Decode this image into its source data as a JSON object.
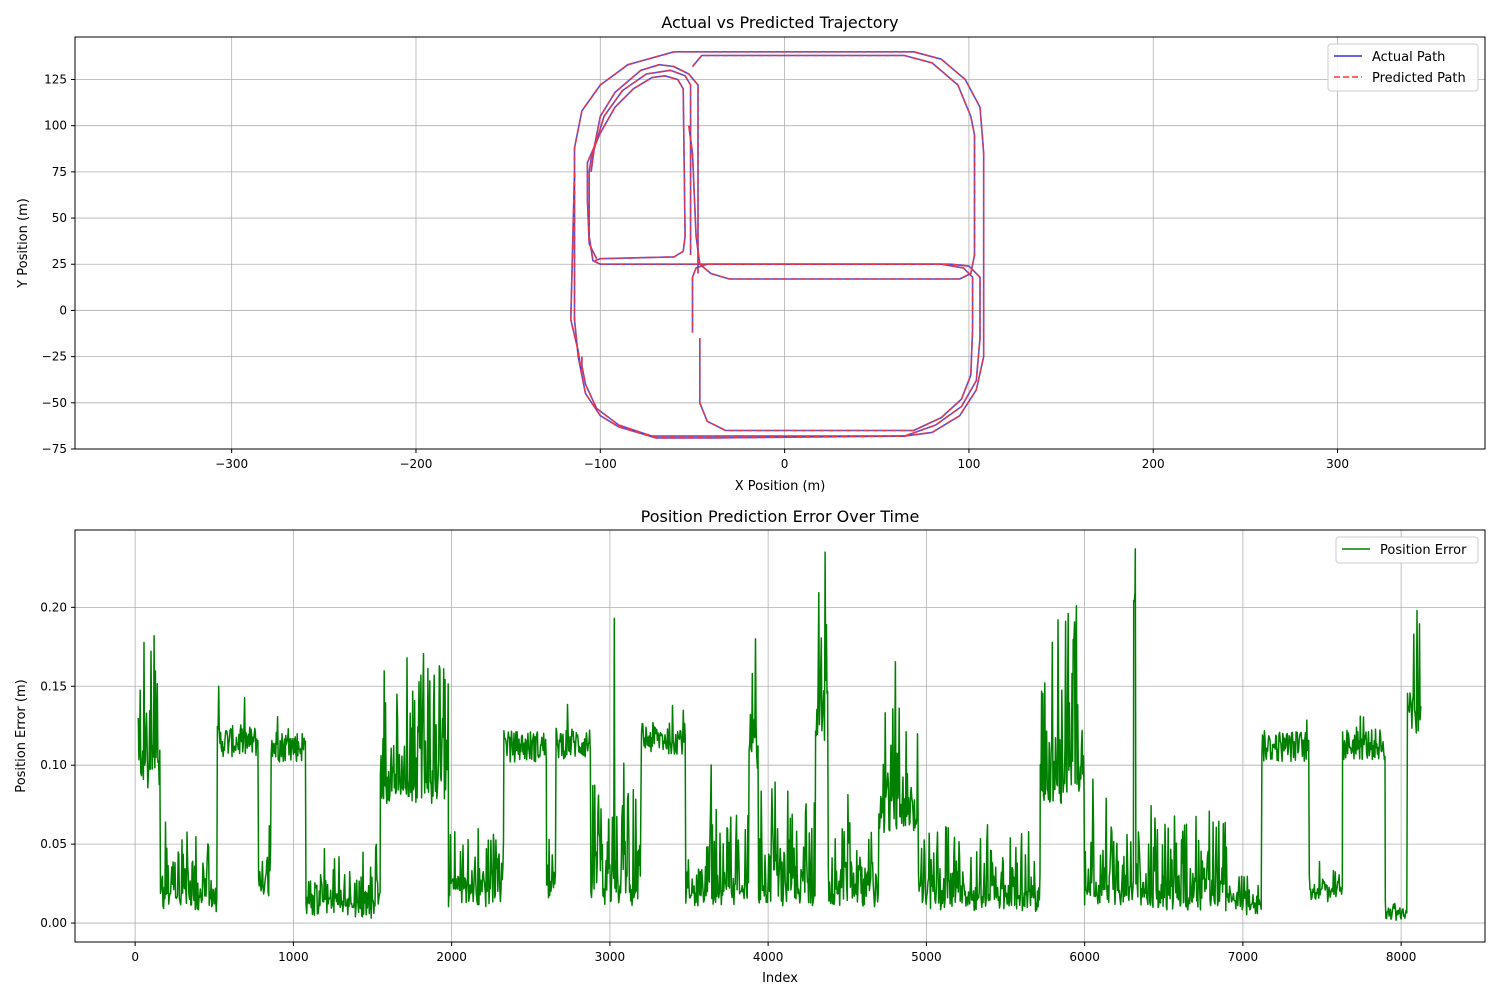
{
  "chart_data": [
    {
      "type": "line",
      "title": "Actual vs Predicted Trajectory",
      "xlabel": "X Position (m)",
      "ylabel": "Y Position (m)",
      "xlim": [
        -385,
        380
      ],
      "ylim": [
        -75,
        148
      ],
      "xticks": [
        -300,
        -200,
        -100,
        0,
        100,
        200,
        300
      ],
      "yticks": [
        -75,
        -50,
        -25,
        0,
        25,
        50,
        75,
        100,
        125
      ],
      "xtick_labels": [
        "−300",
        "−200",
        "−100",
        "0",
        "100",
        "200",
        "300"
      ],
      "ytick_labels": [
        "−75",
        "−50",
        "−25",
        "0",
        "25",
        "50",
        "75",
        "100",
        "125"
      ],
      "grid": true,
      "legend": "top-right",
      "series": [
        {
          "name": "Actual Path",
          "color": "#3333dd",
          "style": "solid"
        },
        {
          "name": "Predicted Path",
          "color": "#ff3333",
          "style": "dashed"
        }
      ],
      "paths": [
        [
          [
            -114,
            75
          ],
          [
            -114,
            -5
          ],
          [
            -112,
            -25
          ],
          [
            -108,
            -45
          ],
          [
            -100,
            -57
          ],
          [
            -90,
            -63
          ],
          [
            -70,
            -69
          ],
          [
            -40,
            -69
          ],
          [
            65,
            -68
          ],
          [
            80,
            -66
          ],
          [
            95,
            -57
          ],
          [
            104,
            -43
          ],
          [
            108,
            -25
          ],
          [
            108,
            25
          ],
          [
            108,
            85
          ],
          [
            106,
            110
          ],
          [
            98,
            125
          ],
          [
            85,
            136
          ],
          [
            70,
            140
          ],
          [
            -60,
            140
          ],
          [
            -85,
            133
          ],
          [
            -100,
            122
          ],
          [
            -110,
            108
          ],
          [
            -114,
            88
          ],
          [
            -114,
            75
          ]
        ],
        [
          [
            -110,
            -25
          ],
          [
            -110,
            -30
          ],
          [
            -108,
            -40
          ],
          [
            -102,
            -53
          ],
          [
            -90,
            -62
          ],
          [
            -72,
            -68
          ],
          [
            -58,
            -68
          ],
          [
            65,
            -68
          ],
          [
            82,
            -62
          ],
          [
            96,
            -52
          ],
          [
            104,
            -38
          ],
          [
            106,
            -15
          ],
          [
            106,
            18
          ],
          [
            100,
            24
          ],
          [
            90,
            25
          ],
          [
            -100,
            25
          ],
          [
            -104,
            27
          ],
          [
            -106,
            40
          ],
          [
            -106,
            75
          ],
          [
            -105,
            82
          ],
          [
            -98,
            105
          ],
          [
            -88,
            119
          ],
          [
            -75,
            128
          ],
          [
            -62,
            130
          ],
          [
            -54,
            127
          ],
          [
            -51,
            122
          ],
          [
            -51,
            30
          ]
        ],
        [
          [
            -46,
            -15
          ],
          [
            -46,
            -50
          ],
          [
            -42,
            -60
          ],
          [
            -32,
            -65
          ],
          [
            70,
            -65
          ],
          [
            85,
            -58
          ],
          [
            96,
            -48
          ],
          [
            101,
            -35
          ],
          [
            102,
            -10
          ],
          [
            102,
            18
          ],
          [
            97,
            23
          ],
          [
            85,
            25
          ],
          [
            -42,
            25
          ],
          [
            -48,
            23
          ],
          [
            -50,
            18
          ],
          [
            -50,
            -12
          ]
        ],
        [
          [
            -52,
            100
          ],
          [
            -50,
            85
          ],
          [
            -48,
            40
          ],
          [
            -46,
            25
          ],
          [
            -40,
            20
          ],
          [
            -30,
            17
          ],
          [
            -20,
            17
          ],
          [
            95,
            17
          ],
          [
            101,
            20
          ],
          [
            103,
            30
          ],
          [
            103,
            70
          ],
          [
            103,
            95
          ],
          [
            101,
            105
          ],
          [
            94,
            122
          ],
          [
            80,
            134
          ],
          [
            65,
            138
          ],
          [
            -45,
            138
          ],
          [
            -50,
            132
          ]
        ],
        [
          [
            -102,
            28
          ],
          [
            -106,
            36
          ],
          [
            -107,
            60
          ],
          [
            -107,
            80
          ],
          [
            -100,
            96
          ],
          [
            -92,
            110
          ],
          [
            -82,
            120
          ],
          [
            -72,
            126
          ],
          [
            -65,
            127
          ],
          [
            -58,
            125
          ],
          [
            -55,
            120
          ],
          [
            -54,
            40
          ],
          [
            -55,
            32
          ],
          [
            -60,
            29
          ],
          [
            -100,
            28
          ],
          [
            -103,
            27
          ]
        ],
        [
          [
            -47,
            20
          ],
          [
            -47,
            122
          ],
          [
            -52,
            128
          ],
          [
            -60,
            132
          ],
          [
            -68,
            133
          ],
          [
            -78,
            130
          ],
          [
            -92,
            118
          ],
          [
            -100,
            105
          ],
          [
            -103,
            90
          ],
          [
            -105,
            75
          ]
        ],
        [
          [
            -114,
            75
          ],
          [
            -116,
            -5
          ],
          [
            -112,
            -22
          ],
          [
            -110,
            -35
          ]
        ]
      ]
    },
    {
      "type": "line",
      "title": "Position Prediction Error Over Time",
      "xlabel": "Index",
      "ylabel": "Position Error (m)",
      "xlim": [
        -380,
        8530
      ],
      "ylim": [
        -0.012,
        0.249
      ],
      "xticks": [
        0,
        1000,
        2000,
        3000,
        4000,
        5000,
        6000,
        7000,
        8000
      ],
      "yticks": [
        0.0,
        0.05,
        0.1,
        0.15,
        0.2
      ],
      "xtick_labels": [
        "0",
        "1000",
        "2000",
        "3000",
        "4000",
        "5000",
        "6000",
        "7000",
        "8000"
      ],
      "ytick_labels": [
        "0.00",
        "0.05",
        "0.10",
        "0.15",
        "0.20"
      ],
      "grid": true,
      "legend": "top-right",
      "series": [
        {
          "name": "Position Error",
          "color": "#008000",
          "style": "solid"
        }
      ],
      "segments": [
        {
          "x": [
            20,
            160
          ],
          "mode": "noisy",
          "base": 0.09,
          "amp": 0.09
        },
        {
          "x": [
            160,
            520
          ],
          "mode": "noisy",
          "base": 0.012,
          "amp": 0.06
        },
        {
          "x": [
            520,
            780
          ],
          "mode": "plateau",
          "base": 0.115,
          "amp": 0.01
        },
        {
          "x": [
            780,
            860
          ],
          "mode": "noisy",
          "base": 0.02,
          "amp": 0.06
        },
        {
          "x": [
            860,
            1080
          ],
          "mode": "plateau",
          "base": 0.112,
          "amp": 0.01
        },
        {
          "x": [
            1080,
            1550
          ],
          "mode": "noisy",
          "base": 0.008,
          "amp": 0.04
        },
        {
          "x": [
            1550,
            1980
          ],
          "mode": "noisy",
          "base": 0.08,
          "amp": 0.09
        },
        {
          "x": [
            1980,
            2330
          ],
          "mode": "noisy",
          "base": 0.015,
          "amp": 0.05
        },
        {
          "x": [
            2330,
            2600
          ],
          "mode": "plateau",
          "base": 0.112,
          "amp": 0.01
        },
        {
          "x": [
            2600,
            2660
          ],
          "mode": "noisy",
          "base": 0.02,
          "amp": 0.06
        },
        {
          "x": [
            2660,
            2880
          ],
          "mode": "plateau",
          "base": 0.114,
          "amp": 0.01
        },
        {
          "x": [
            2880,
            3200
          ],
          "mode": "noisy",
          "base": 0.015,
          "amp": 0.07
        },
        {
          "x": [
            3200,
            3480
          ],
          "mode": "plateau",
          "base": 0.117,
          "amp": 0.01
        },
        {
          "x": [
            3480,
            3880
          ],
          "mode": "noisy",
          "base": 0.015,
          "amp": 0.06
        },
        {
          "x": [
            3880,
            3940
          ],
          "mode": "noisy",
          "base": 0.1,
          "amp": 0.08
        },
        {
          "x": [
            3940,
            4300
          ],
          "mode": "noisy",
          "base": 0.015,
          "amp": 0.07
        },
        {
          "x": [
            4300,
            4380
          ],
          "mode": "noisy",
          "base": 0.12,
          "amp": 0.11
        },
        {
          "x": [
            4380,
            4700
          ],
          "mode": "noisy",
          "base": 0.015,
          "amp": 0.05
        },
        {
          "x": [
            4700,
            4950
          ],
          "mode": "noisy",
          "base": 0.06,
          "amp": 0.08
        },
        {
          "x": [
            4950,
            5720
          ],
          "mode": "noisy",
          "base": 0.012,
          "amp": 0.05
        },
        {
          "x": [
            5720,
            6000
          ],
          "mode": "noisy",
          "base": 0.08,
          "amp": 0.11
        },
        {
          "x": [
            6000,
            6310
          ],
          "mode": "noisy",
          "base": 0.015,
          "amp": 0.05
        },
        {
          "x": [
            6310,
            6320
          ],
          "mode": "noisy",
          "base": 0.2,
          "amp": 0.03
        },
        {
          "x": [
            6320,
            6900
          ],
          "mode": "noisy",
          "base": 0.012,
          "amp": 0.06
        },
        {
          "x": [
            6900,
            7120
          ],
          "mode": "noisy",
          "base": 0.01,
          "amp": 0.03
        },
        {
          "x": [
            7120,
            7420
          ],
          "mode": "plateau",
          "base": 0.112,
          "amp": 0.01
        },
        {
          "x": [
            7420,
            7630
          ],
          "mode": "noisy",
          "base": 0.018,
          "amp": 0.02
        },
        {
          "x": [
            7630,
            7900
          ],
          "mode": "plateau",
          "base": 0.113,
          "amp": 0.01
        },
        {
          "x": [
            7900,
            8040
          ],
          "mode": "noisy",
          "base": 0.005,
          "amp": 0.01
        },
        {
          "x": [
            8040,
            8130
          ],
          "mode": "noisy",
          "base": 0.12,
          "amp": 0.08
        }
      ],
      "spikes": [
        [
          120,
          0.182
        ],
        [
          530,
          0.15
        ],
        [
          1720,
          0.168
        ],
        [
          1950,
          0.161
        ],
        [
          3030,
          0.193
        ],
        [
          3920,
          0.18
        ],
        [
          4360,
          0.235
        ],
        [
          5950,
          0.201
        ],
        [
          6320,
          0.237
        ],
        [
          8100,
          0.198
        ]
      ]
    }
  ]
}
